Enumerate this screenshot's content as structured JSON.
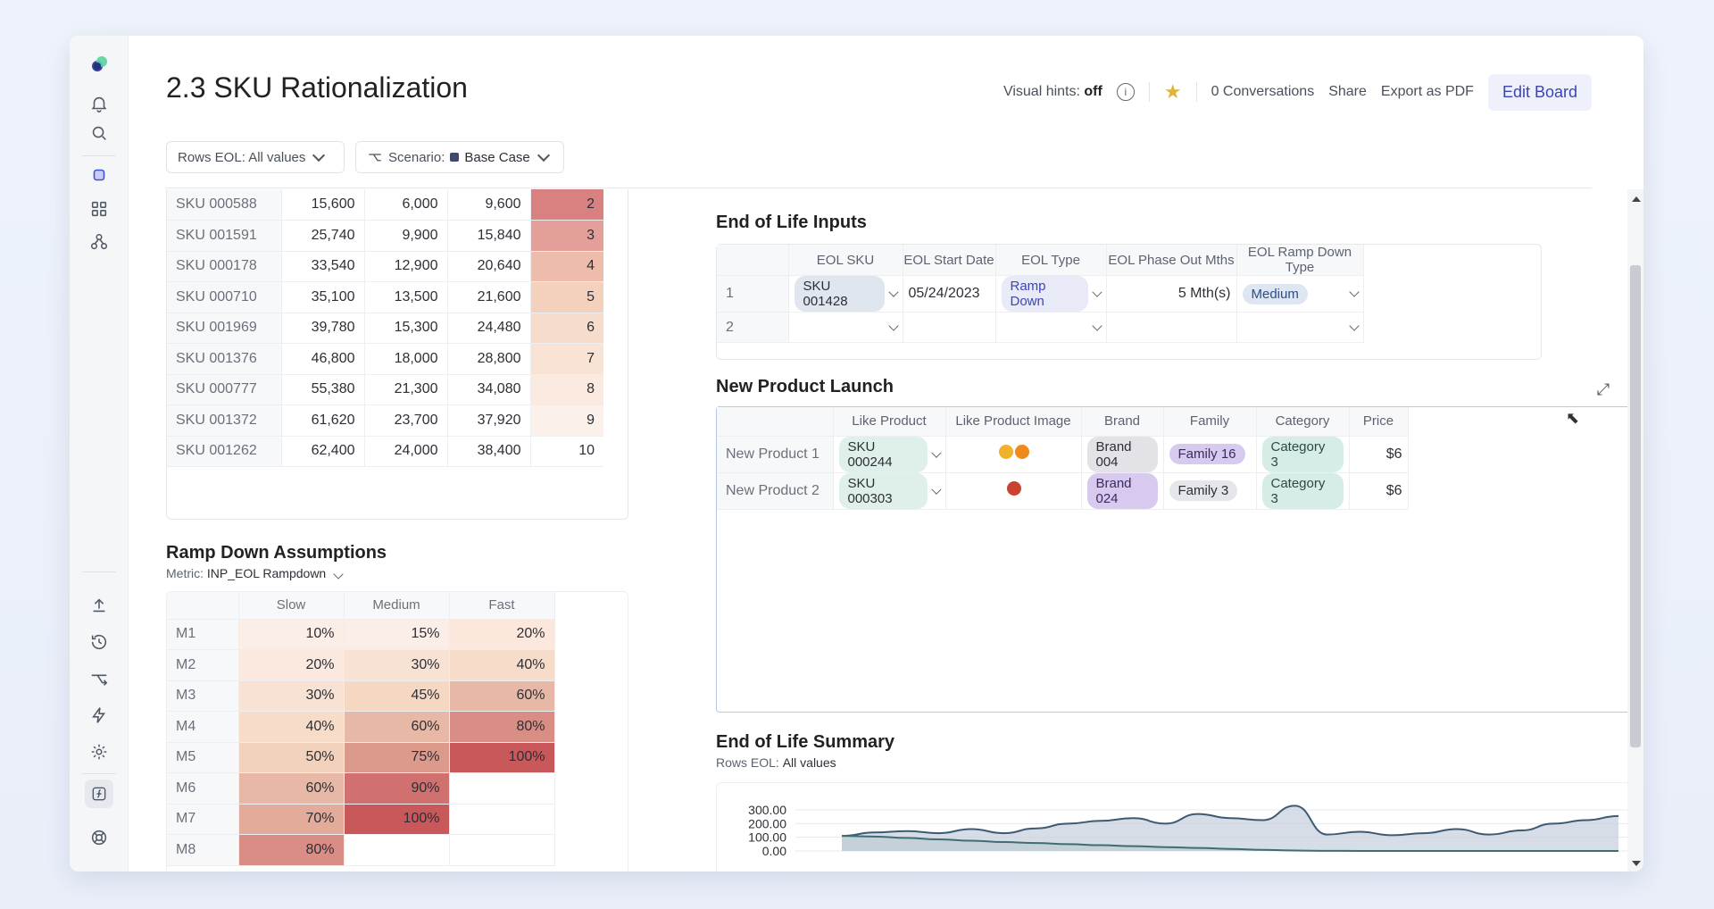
{
  "title": "2.3 SKU Rationalization",
  "topbar": {
    "hint_label": "Visual hints:",
    "hint_value": "off",
    "conversations": "0 Conversations",
    "share": "Share",
    "export": "Export as PDF",
    "edit": "Edit Board"
  },
  "filters": {
    "rows_eol": "Rows EOL: All values",
    "scenario_label": "Scenario:",
    "scenario_value": "Base Case"
  },
  "sku_table": {
    "rows": [
      {
        "sku": "SKU 000588",
        "a": "15,600",
        "b": "6,000",
        "c": "9,600",
        "rank": "2",
        "color": "#d98080"
      },
      {
        "sku": "SKU 001591",
        "a": "25,740",
        "b": "9,900",
        "c": "15,840",
        "rank": "3",
        "color": "#e4a098"
      },
      {
        "sku": "SKU 000178",
        "a": "33,540",
        "b": "12,900",
        "c": "20,640",
        "rank": "4",
        "color": "#edbcab"
      },
      {
        "sku": "SKU 000710",
        "a": "35,100",
        "b": "13,500",
        "c": "21,600",
        "rank": "5",
        "color": "#f4d1bd"
      },
      {
        "sku": "SKU 001969",
        "a": "39,780",
        "b": "15,300",
        "c": "24,480",
        "rank": "6",
        "color": "#f6dccb"
      },
      {
        "sku": "SKU 001376",
        "a": "46,800",
        "b": "18,000",
        "c": "28,800",
        "rank": "7",
        "color": "#f8e3d5"
      },
      {
        "sku": "SKU 000777",
        "a": "55,380",
        "b": "21,300",
        "c": "34,080",
        "rank": "8",
        "color": "#faeadf"
      },
      {
        "sku": "SKU 001372",
        "a": "61,620",
        "b": "23,700",
        "c": "37,920",
        "rank": "9",
        "color": "#fcf1ea"
      },
      {
        "sku": "SKU 001262",
        "a": "62,400",
        "b": "24,000",
        "c": "38,400",
        "rank": "10",
        "color": "#ffffff"
      }
    ]
  },
  "ramp": {
    "title": "Ramp Down Assumptions",
    "metric_label": "Metric:",
    "metric_value": "INP_EOL Rampdown",
    "headers": [
      "Slow",
      "Medium",
      "Fast"
    ],
    "rows": [
      {
        "label": "M1",
        "cells": [
          {
            "v": "10%",
            "c": "#fbeee6"
          },
          {
            "v": "15%",
            "c": "#fbeee6"
          },
          {
            "v": "20%",
            "c": "#fbe7dc"
          }
        ]
      },
      {
        "label": "M2",
        "cells": [
          {
            "v": "20%",
            "c": "#fbe9df"
          },
          {
            "v": "30%",
            "c": "#f8e2d3"
          },
          {
            "v": "40%",
            "c": "#f6dcc9"
          }
        ]
      },
      {
        "label": "M3",
        "cells": [
          {
            "v": "30%",
            "c": "#f8e2d3"
          },
          {
            "v": "45%",
            "c": "#f5d7c2"
          },
          {
            "v": "60%",
            "c": "#e7b8a5"
          }
        ]
      },
      {
        "label": "M4",
        "cells": [
          {
            "v": "40%",
            "c": "#f6dcc9"
          },
          {
            "v": "60%",
            "c": "#e7b8a5"
          },
          {
            "v": "80%",
            "c": "#d98e85"
          }
        ]
      },
      {
        "label": "M5",
        "cells": [
          {
            "v": "50%",
            "c": "#f3d2bd"
          },
          {
            "v": "75%",
            "c": "#dc9a8d"
          },
          {
            "v": "100%",
            "c": "#c9585a"
          }
        ]
      },
      {
        "label": "M6",
        "cells": [
          {
            "v": "60%",
            "c": "#e7b8a5"
          },
          {
            "v": "90%",
            "c": "#d07170"
          },
          {
            "v": "",
            "c": "#ffffff"
          }
        ]
      },
      {
        "label": "M7",
        "cells": [
          {
            "v": "70%",
            "c": "#e3ab99"
          },
          {
            "v": "100%",
            "c": "#c9585a"
          },
          {
            "v": "",
            "c": "#ffffff"
          }
        ]
      },
      {
        "label": "M8",
        "cells": [
          {
            "v": "80%",
            "c": "#d98e85"
          },
          {
            "v": "",
            "c": "#ffffff"
          },
          {
            "v": "",
            "c": "#ffffff"
          }
        ]
      }
    ]
  },
  "eol_inputs": {
    "title": "End of Life Inputs",
    "headers": [
      "EOL SKU",
      "EOL Start Date",
      "EOL Type",
      "EOL Phase Out Mths",
      "EOL Ramp Down Type"
    ],
    "rows": [
      {
        "n": "1",
        "sku": "SKU 001428",
        "date": "05/24/2023",
        "type": "Ramp Down",
        "mths": "5 Mth(s)",
        "ramp": "Medium"
      },
      {
        "n": "2",
        "sku": "",
        "date": "",
        "type": "",
        "mths": "",
        "ramp": ""
      }
    ]
  },
  "npl": {
    "title": "New Product Launch",
    "headers": [
      "Like Product",
      "Like Product Image",
      "Brand",
      "Family",
      "Category",
      "Price"
    ],
    "rows": [
      {
        "name": "New Product 1",
        "like": "SKU 000244",
        "brand": "Brand 004",
        "family": "Family 16",
        "category": "Category 3",
        "price": "$6"
      },
      {
        "name": "New Product 2",
        "like": "SKU 000303",
        "brand": "Brand 024",
        "family": "Family 3",
        "category": "Category 3",
        "price": "$6"
      }
    ]
  },
  "summary": {
    "title": "End of Life Summary",
    "filter_label": "Rows EOL:",
    "filter_value": "All values"
  },
  "chart_data": {
    "type": "area",
    "y_ticks": [
      "300.00",
      "200.00",
      "100.00",
      "0.00"
    ],
    "ylim": [
      0,
      300
    ],
    "series": [
      {
        "values": [
          110,
          135,
          145,
          130,
          160,
          130,
          165,
          200,
          220,
          240,
          200,
          270,
          240,
          225,
          330,
          120,
          140,
          115,
          130,
          160,
          120,
          150,
          200,
          225,
          255
        ]
      },
      {
        "values": [
          110,
          105,
          95,
          85,
          75,
          65,
          58,
          50,
          42,
          35,
          28,
          22,
          15,
          8,
          3,
          1,
          0,
          0,
          0,
          0,
          0,
          0,
          0,
          0,
          0
        ]
      }
    ]
  }
}
